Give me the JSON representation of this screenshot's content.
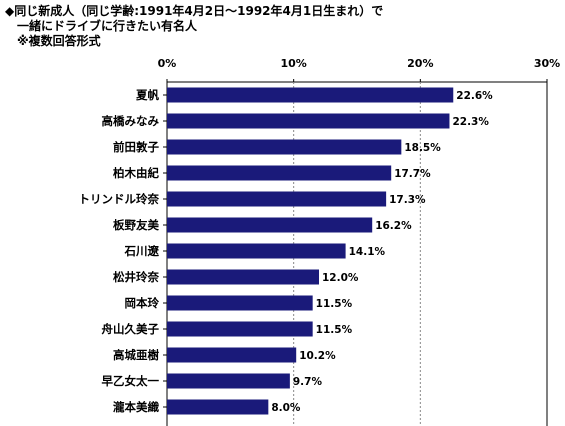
{
  "header": {
    "line1": "◆同じ新成人（同じ学齢:1991年4月2日～1992年4月1日生まれ）で",
    "line2": "一緒にドライブに行きたい有名人",
    "line3": "※複数回答形式"
  },
  "chart_data": {
    "type": "bar",
    "orientation": "horizontal",
    "categories": [
      "夏帆",
      "高橋みなみ",
      "前田敦子",
      "柏木由紀",
      "トリンドル玲奈",
      "板野友美",
      "石川遼",
      "松井玲奈",
      "岡本玲",
      "舟山久美子",
      "高城亜樹",
      "早乙女太一",
      "瀧本美織"
    ],
    "values": [
      22.6,
      22.3,
      18.5,
      17.7,
      17.3,
      16.2,
      14.1,
      12.0,
      11.5,
      11.5,
      10.2,
      9.7,
      8.0
    ],
    "value_labels": [
      "22.6%",
      "22.3%",
      "18.5%",
      "17.7%",
      "17.3%",
      "16.2%",
      "14.1%",
      "12.0%",
      "11.5%",
      "11.5%",
      "10.2%",
      "9.7%",
      "8.0%"
    ],
    "xlim": [
      0,
      30
    ],
    "xticks": [
      0,
      10,
      20,
      30
    ],
    "xtick_labels": [
      "0%",
      "10%",
      "20%",
      "30%"
    ],
    "bar_color": "#1a1a7a",
    "grid": "vertical dashed at 10% intervals"
  }
}
